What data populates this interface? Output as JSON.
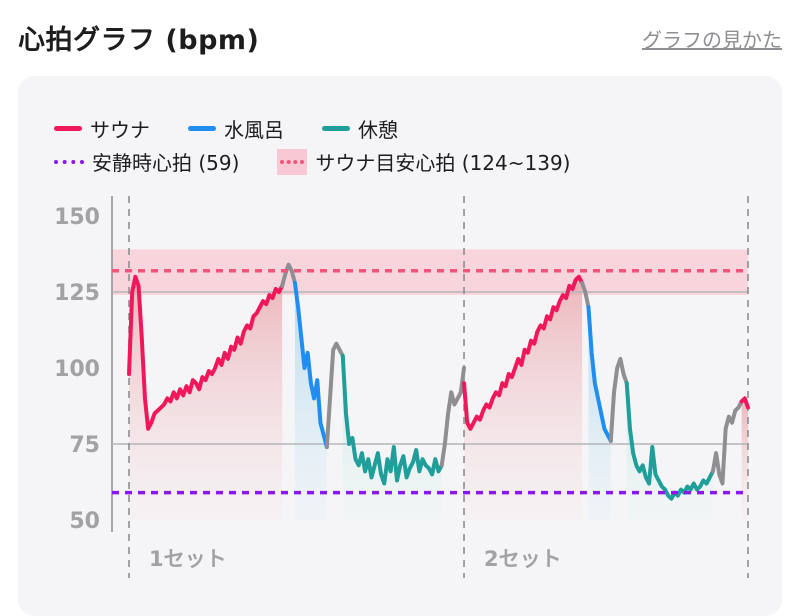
{
  "header": {
    "title": "心拍グラフ (bpm)",
    "help_link": "グラフの見かた"
  },
  "legend": {
    "sauna": "サウナ",
    "water": "水風呂",
    "rest": "休憩",
    "resting_hr": "安静時心拍 (59)",
    "sauna_target": "サウナ目安心拍 (124~139)"
  },
  "colors": {
    "sauna": "#f0185a",
    "water": "#1f8ef0",
    "rest": "#1f9e9a",
    "other": "#8e8e93",
    "resting": "#8a17f0",
    "target_band": "#f8c9d4",
    "target_line": "#f2557a"
  },
  "chart_data": {
    "type": "line",
    "x_unit": "segment index",
    "ylim": [
      45,
      155
    ],
    "yticks": [
      50,
      75,
      100,
      125,
      150
    ],
    "resting_hr": 59,
    "target_range": [
      124,
      139
    ],
    "target_line": 132,
    "set_labels": [
      "1セット",
      "2セット"
    ],
    "segments": [
      {
        "phase": "sauna",
        "values": [
          98,
          125,
          130,
          127,
          110,
          90,
          80,
          82,
          85,
          86,
          87,
          88,
          90,
          89,
          92,
          90,
          93,
          91,
          94,
          92,
          96,
          95,
          93,
          97,
          96,
          99,
          98,
          100,
          103,
          101,
          105,
          103,
          107,
          106,
          110,
          108,
          112,
          114,
          113,
          117,
          118,
          120,
          122,
          121,
          124,
          123,
          126,
          125,
          127
        ]
      },
      {
        "phase": "other",
        "values": [
          127,
          131,
          134,
          132,
          128
        ]
      },
      {
        "phase": "water",
        "values": [
          128,
          120,
          110,
          100,
          105,
          95,
          90,
          96,
          82,
          78,
          74
        ]
      },
      {
        "phase": "other",
        "values": [
          74,
          90,
          106,
          108,
          106,
          104
        ]
      },
      {
        "phase": "rest",
        "values": [
          104,
          85,
          75,
          77,
          70,
          68,
          72,
          66,
          70,
          64,
          68,
          72,
          65,
          62,
          70,
          66,
          74,
          63,
          68,
          71,
          64,
          67,
          69,
          73,
          66,
          70,
          68,
          67,
          65,
          70,
          66,
          68
        ]
      },
      {
        "phase": "other",
        "values": [
          68,
          75,
          85,
          92,
          88,
          90,
          92,
          100
        ]
      },
      {
        "phase": "sauna",
        "values": [
          95,
          82,
          80,
          82,
          84,
          83,
          86,
          88,
          87,
          90,
          92,
          91,
          95,
          94,
          98,
          97,
          100,
          103,
          101,
          106,
          105,
          109,
          108,
          112,
          114,
          113,
          117,
          116,
          120,
          119,
          122,
          124,
          123,
          127,
          126,
          129,
          130,
          128
        ]
      },
      {
        "phase": "other",
        "values": [
          128,
          125,
          120
        ]
      },
      {
        "phase": "water",
        "values": [
          120,
          105,
          95,
          90,
          85,
          80,
          78,
          76
        ]
      },
      {
        "phase": "other",
        "values": [
          76,
          92,
          100,
          103,
          98,
          95
        ]
      },
      {
        "phase": "rest",
        "values": [
          95,
          80,
          72,
          68,
          66,
          68,
          64,
          62,
          74,
          65,
          63,
          61,
          60,
          58,
          57,
          59,
          58,
          60,
          59,
          61,
          60,
          62,
          60,
          61,
          63,
          62,
          64,
          66
        ]
      },
      {
        "phase": "other",
        "values": [
          66,
          72,
          65,
          62,
          80,
          84,
          82,
          86,
          87,
          89
        ]
      },
      {
        "phase": "sauna",
        "values": [
          89,
          90,
          87
        ]
      }
    ]
  }
}
